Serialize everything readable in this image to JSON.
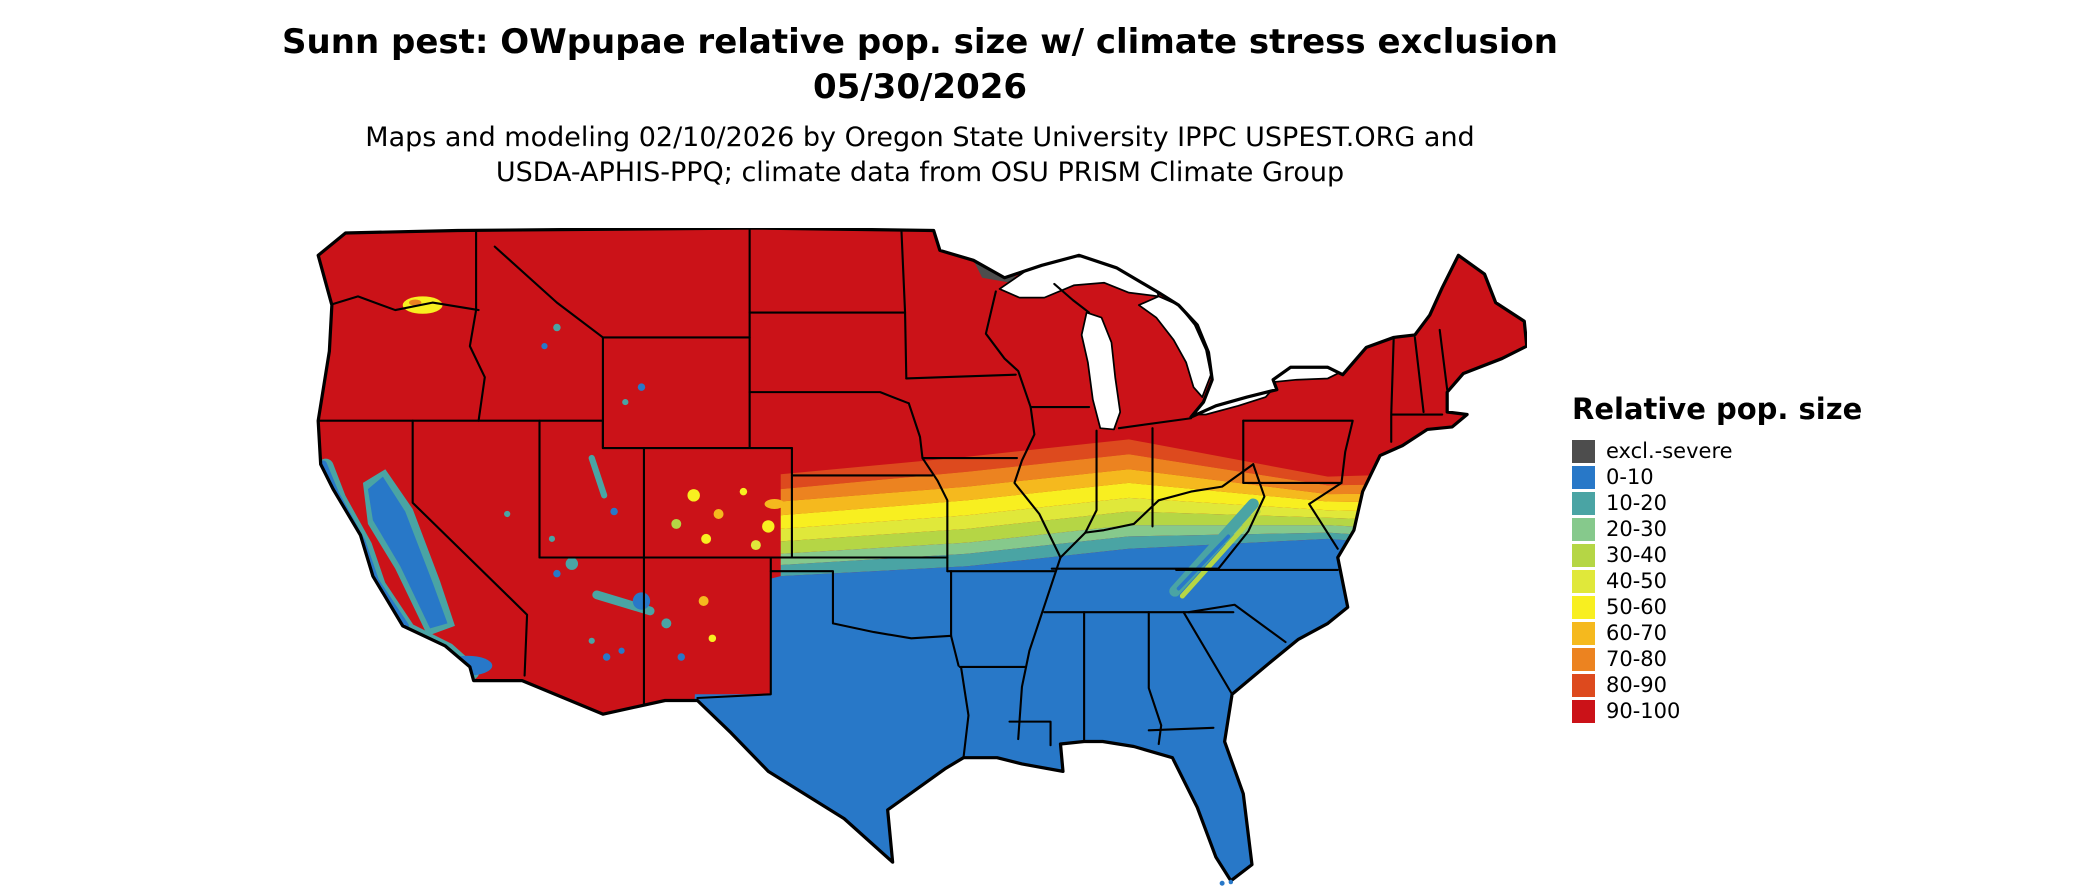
{
  "title": {
    "line1": "Sunn pest: OWpupae relative pop. size w/ climate stress exclusion",
    "line2": "05/30/2026"
  },
  "subtitle": {
    "line1": "Maps and modeling 02/10/2026 by Oregon State University IPPC USPEST.ORG and",
    "line2": "USDA-APHIS-PPQ; climate data from OSU PRISM Climate Group"
  },
  "legend": {
    "title": "Relative pop. size",
    "items": [
      {
        "label": "excl.-severe",
        "color": "#4d4d4d"
      },
      {
        "label": "0-10",
        "color": "#2878c8"
      },
      {
        "label": "10-20",
        "color": "#4aa4a4"
      },
      {
        "label": "20-30",
        "color": "#86c98c"
      },
      {
        "label": "30-40",
        "color": "#b5d645"
      },
      {
        "label": "40-50",
        "color": "#e0e83a"
      },
      {
        "label": "50-60",
        "color": "#f8ef20"
      },
      {
        "label": "60-70",
        "color": "#f5b91e"
      },
      {
        "label": "70-80",
        "color": "#ec8320"
      },
      {
        "label": "80-90",
        "color": "#dd4a1e"
      },
      {
        "label": "90-100",
        "color": "#cb1218"
      }
    ]
  },
  "map": {
    "area": "Contiguous United States",
    "description": "Choropleth raster map: red (90-100) across the northern and western states, a graded yellow-green transition band through the central states and mid-Atlantic, blue (0-10) across the southern states, blue/teal terrain patches along the Pacific coast and southwestern mountains, and a small dark-gray excluded-severe area in northern Minnesota."
  }
}
